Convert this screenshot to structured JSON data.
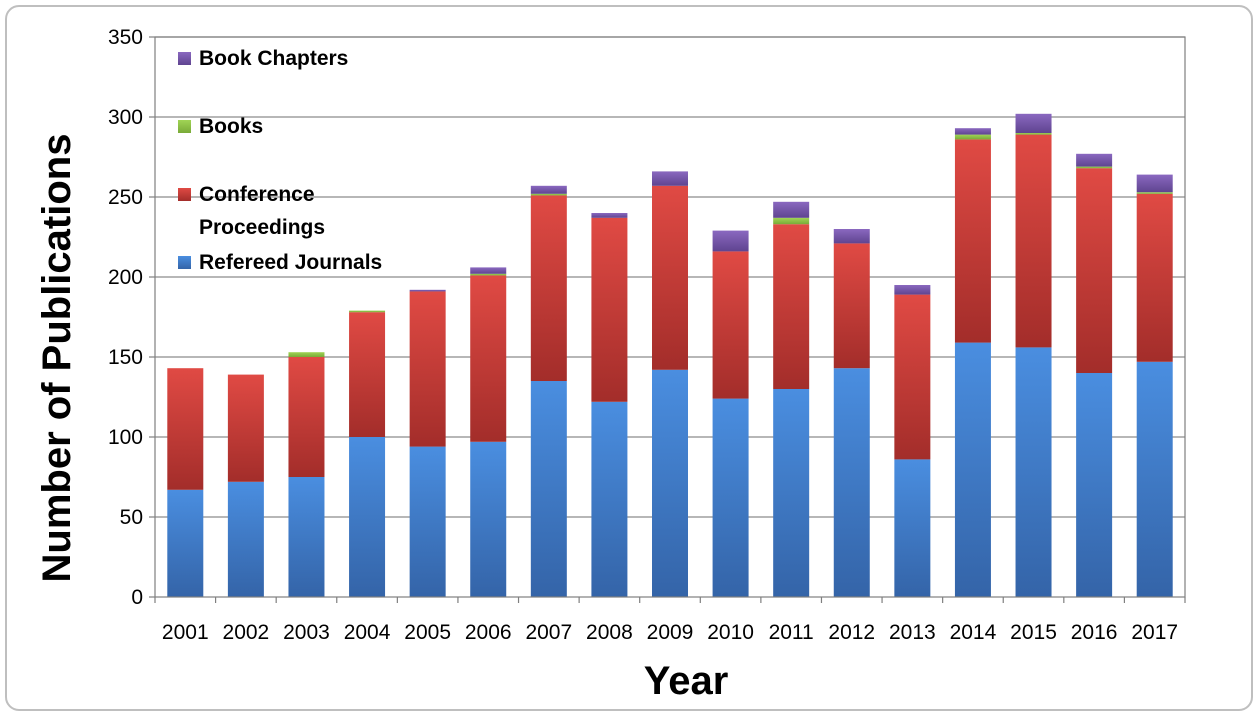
{
  "chart_data": {
    "type": "bar",
    "stacked": true,
    "title": "",
    "xlabel": "Year",
    "ylabel": "Number of Publications",
    "ylim": [
      0,
      350
    ],
    "yticks": [
      0,
      50,
      100,
      150,
      200,
      250,
      300,
      350
    ],
    "grid": true,
    "legend_position": "top-left",
    "categories": [
      "2001",
      "2002",
      "2003",
      "2004",
      "2005",
      "2006",
      "2007",
      "2008",
      "2009",
      "2010",
      "2011",
      "2012",
      "2013",
      "2014",
      "2015",
      "2016",
      "2017"
    ],
    "series": [
      {
        "name": "Refereed Journals",
        "color": "#3f7fd3",
        "values": [
          67,
          72,
          75,
          100,
          94,
          97,
          135,
          122,
          142,
          124,
          130,
          143,
          86,
          159,
          156,
          140,
          147
        ]
      },
      {
        "name": "Conference Proceedings",
        "color": "#c83a37",
        "values": [
          76,
          67,
          75,
          78,
          97,
          104,
          116,
          115,
          115,
          92,
          103,
          78,
          103,
          127,
          133,
          128,
          105
        ]
      },
      {
        "name": "Books",
        "color": "#8dc444",
        "values": [
          0,
          0,
          3,
          1,
          0,
          1,
          1,
          0,
          0,
          0,
          4,
          0,
          0,
          3,
          1,
          1,
          1
        ]
      },
      {
        "name": "Book Chapters",
        "color": "#7a59b0",
        "values": [
          0,
          0,
          0,
          0,
          1,
          4,
          5,
          3,
          9,
          13,
          10,
          9,
          6,
          4,
          12,
          8,
          11
        ]
      }
    ]
  }
}
